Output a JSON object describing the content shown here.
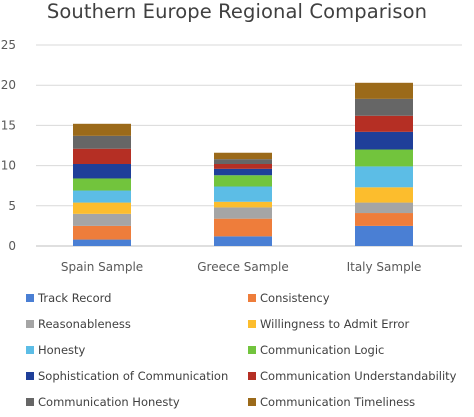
{
  "chart_data": {
    "type": "bar",
    "stacked": true,
    "title": "Southern Europe Regional Comparison",
    "xlabel": "",
    "ylabel": "",
    "ylim": [
      0,
      25
    ],
    "yticks": [
      "0",
      "5",
      "10",
      "15",
      "20",
      "25"
    ],
    "grid": true,
    "legend_position": "bottom",
    "categories": [
      "Spain Sample",
      "Greece Sample",
      "Italy Sample"
    ],
    "series": [
      {
        "name": "Track Record",
        "color": "#4a7fd4",
        "values": [
          0.8,
          1.2,
          2.5
        ]
      },
      {
        "name": "Consistency",
        "color": "#ee7d3b",
        "values": [
          1.7,
          2.2,
          1.6
        ]
      },
      {
        "name": "Reasonableness",
        "color": "#a5a5a5",
        "values": [
          1.5,
          1.4,
          1.3
        ]
      },
      {
        "name": "Willingness to Admit Error",
        "color": "#fcbd2d",
        "values": [
          1.4,
          0.7,
          1.9
        ]
      },
      {
        "name": "Honesty",
        "color": "#5cbde6",
        "values": [
          1.5,
          1.9,
          2.6
        ]
      },
      {
        "name": "Communication Logic",
        "color": "#72c43d",
        "values": [
          1.5,
          1.4,
          2.1
        ]
      },
      {
        "name": "Sophistication of Communication",
        "color": "#1f3f99",
        "values": [
          1.8,
          0.8,
          2.2
        ]
      },
      {
        "name": "Communication Understandability",
        "color": "#b52f24",
        "values": [
          1.9,
          0.6,
          2.0
        ]
      },
      {
        "name": "Communication Honesty",
        "color": "#666666",
        "values": [
          1.6,
          0.6,
          2.1
        ]
      },
      {
        "name": "Communication Timeliness",
        "color": "#9b6a1a",
        "values": [
          1.5,
          0.8,
          2.0
        ]
      }
    ]
  }
}
